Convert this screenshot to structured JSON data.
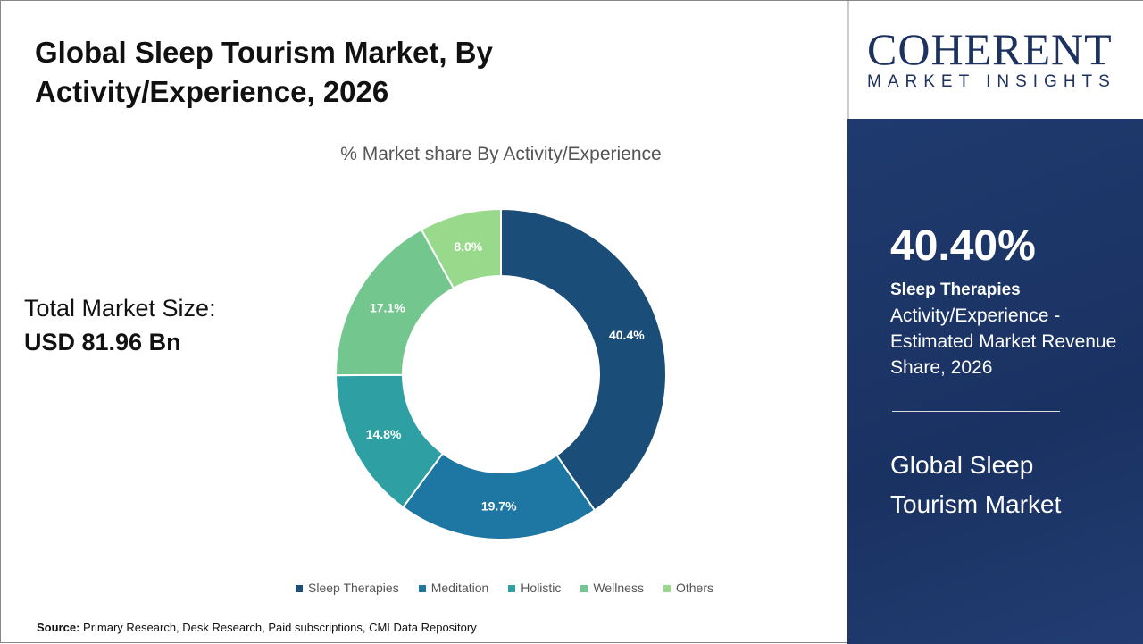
{
  "title": "Global Sleep Tourism Market, By Activity/Experience, 2026",
  "total_label": "Total Market Size:",
  "total_value": "USD 81.96 Bn",
  "source_label": "Source:",
  "source_text": " Primary Research, Desk Research, Paid subscriptions, CMI Data Repository",
  "logo": {
    "line1": "COHERENT",
    "line2": "MARKET INSIGHTS"
  },
  "panel": {
    "percent": "40.40%",
    "segment": "Sleep Therapies",
    "description": "Activity/Experience - Estimated Market Revenue Share, 2026",
    "market": "Global Sleep Tourism Market"
  },
  "chart_data": {
    "type": "pie",
    "donut": true,
    "title": "% Market share By Activity/Experience",
    "categories": [
      "Sleep Therapies",
      "Meditation",
      "Holistic",
      "Wellness",
      "Others"
    ],
    "values": [
      40.4,
      19.7,
      14.8,
      17.1,
      8.0
    ],
    "labels": [
      "40.4%",
      "19.7%",
      "14.8%",
      "17.1%",
      "8.0%"
    ],
    "colors": [
      "#1b4d79",
      "#1e76a3",
      "#2e9fa3",
      "#74c68f",
      "#98d98b"
    ],
    "legend": "bottom"
  }
}
